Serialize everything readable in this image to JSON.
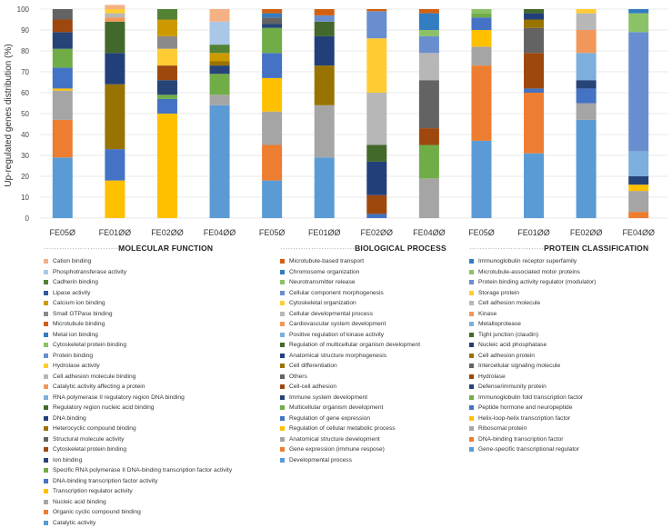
{
  "chart_data": {
    "type": "bar",
    "stacked": true,
    "ylabel": "Up-regulated genes distribution (%)",
    "ylim": [
      0,
      100
    ],
    "yticks": [
      0,
      10,
      20,
      30,
      40,
      50,
      60,
      70,
      80,
      90,
      100
    ],
    "categories": [
      "FE05Ø",
      "FE01ØØ",
      "FE02ØØ",
      "FE04ØØ",
      "FE05Ø",
      "FE01ØØ",
      "FE02ØØ",
      "FE04ØØ",
      "FE05Ø",
      "FE01ØØ",
      "FE02ØØ",
      "FE04ØØ"
    ],
    "groups": [
      {
        "title": "MOLECULAR FUNCTION",
        "categories_index": [
          0,
          1,
          2,
          3
        ],
        "series": [
          {
            "name": "Catalytic activity",
            "color": "#5b9bd5",
            "values": [
              29,
              0,
              0,
              54
            ]
          },
          {
            "name": "Organic cyclic compound binding",
            "color": "#ed7d31",
            "values": [
              18,
              0,
              0,
              0
            ]
          },
          {
            "name": "Nucleic acid binding",
            "color": "#a5a5a5",
            "values": [
              14,
              0,
              0,
              5
            ]
          },
          {
            "name": "Transcription regulator activity",
            "color": "#ffc000",
            "values": [
              1,
              18,
              50,
              0
            ]
          },
          {
            "name": "DNA-binding transcription factor activity",
            "color": "#4472c4",
            "values": [
              10,
              15,
              7,
              0
            ]
          },
          {
            "name": "Specific RNA polymerase II DNA-binding transcription factor activity",
            "color": "#70ad47",
            "values": [
              9,
              0,
              2,
              10
            ]
          },
          {
            "name": "Ion binding",
            "color": "#264478",
            "values": [
              8,
              0,
              7,
              4
            ]
          },
          {
            "name": "Cytoskeletal protein binding",
            "color": "#9e480e",
            "values": [
              6,
              0,
              7,
              0
            ]
          },
          {
            "name": "Structural molecule activity",
            "color": "#636363",
            "values": [
              5,
              0,
              0,
              0
            ]
          },
          {
            "name": "Heterocyclic compound binding",
            "color": "#997300",
            "values": [
              0,
              31,
              0,
              2
            ]
          },
          {
            "name": "DNA binding",
            "color": "#223f7a",
            "values": [
              0,
              15,
              0,
              0
            ]
          },
          {
            "name": "Regulatory region nucleic acid binding",
            "color": "#43682b",
            "values": [
              0,
              15,
              0,
              0
            ]
          },
          {
            "name": "RNA polymerase II regulatory region DNA binding",
            "color": "#7cafdd",
            "values": [
              0,
              0,
              0,
              0
            ]
          },
          {
            "name": "Catalytic activity affecting a protein",
            "color": "#f1975a",
            "values": [
              0,
              2,
              0,
              0
            ]
          },
          {
            "name": "Cell adhesion molecule binding",
            "color": "#b7b7b7",
            "values": [
              0,
              2,
              0,
              0
            ]
          },
          {
            "name": "Hydrolase activity",
            "color": "#ffcd33",
            "values": [
              0,
              2,
              8,
              0
            ]
          },
          {
            "name": "Protein binding",
            "color": "#698ed0",
            "values": [
              0,
              0,
              0,
              0
            ]
          },
          {
            "name": "Cytoskeletal protein binding",
            "color": "#8cc168",
            "values": [
              0,
              0,
              0,
              0
            ]
          },
          {
            "name": "Metal ion binding",
            "color": "#327dc2",
            "values": [
              0,
              0,
              0,
              0
            ]
          },
          {
            "name": "Microtubule binding",
            "color": "#d26012",
            "values": [
              0,
              0,
              0,
              0
            ]
          },
          {
            "name": "Small GTPase binding",
            "color": "#8a8a8a",
            "values": [
              0,
              0,
              6,
              0
            ]
          },
          {
            "name": "Calcium ion binding",
            "color": "#cc9a00",
            "values": [
              0,
              0,
              8,
              4
            ]
          },
          {
            "name": "Lipase activity",
            "color": "#335aa1",
            "values": [
              0,
              0,
              0,
              0
            ]
          },
          {
            "name": "Cadherin binding",
            "color": "#548235",
            "values": [
              0,
              0,
              5,
              4
            ]
          },
          {
            "name": "Phosphotransferase activity",
            "color": "#aac7e8",
            "values": [
              0,
              0,
              0,
              11
            ]
          },
          {
            "name": "Cation binding",
            "color": "#f4b183",
            "values": [
              0,
              2,
              0,
              6
            ]
          }
        ]
      },
      {
        "title": "BIOLOGICAL PROCESS",
        "categories_index": [
          4,
          5,
          6,
          7
        ],
        "series": [
          {
            "name": "Developmental process",
            "color": "#5b9bd5",
            "values": [
              18,
              29,
              0,
              0
            ]
          },
          {
            "name": "Gene expression (immune respose)",
            "color": "#ed7d31",
            "values": [
              17,
              0,
              0,
              0
            ]
          },
          {
            "name": "Anatomical structure development",
            "color": "#a5a5a5",
            "values": [
              16,
              25,
              0,
              19
            ]
          },
          {
            "name": "Regulation of cellular metabolic process",
            "color": "#ffc000",
            "values": [
              16,
              0,
              0,
              0
            ]
          },
          {
            "name": "Regulation of gene expression",
            "color": "#4472c4",
            "values": [
              12,
              0,
              2,
              0
            ]
          },
          {
            "name": "Multicellular organism development",
            "color": "#70ad47",
            "values": [
              12,
              0,
              0,
              16
            ]
          },
          {
            "name": "Immune system development",
            "color": "#264478",
            "values": [
              2,
              0,
              0,
              0
            ]
          },
          {
            "name": "Cell-cell adhesion",
            "color": "#9e480e",
            "values": [
              0,
              0,
              9,
              8
            ]
          },
          {
            "name": "Others",
            "color": "#636363",
            "values": [
              3,
              0,
              0,
              23
            ]
          },
          {
            "name": "Cell differentiation",
            "color": "#997300",
            "values": [
              0,
              19,
              0,
              0
            ]
          },
          {
            "name": "Anatomical structure morphogenesis",
            "color": "#223f7a",
            "values": [
              0,
              14,
              16,
              0
            ]
          },
          {
            "name": "Regulation of multicellular organism development",
            "color": "#43682b",
            "values": [
              0,
              7,
              8,
              0
            ]
          },
          {
            "name": "Positive regulation of kinase activity",
            "color": "#7cafdd",
            "values": [
              0,
              0,
              0,
              0
            ]
          },
          {
            "name": "Cardiovascular system development",
            "color": "#f1975a",
            "values": [
              0,
              0,
              0,
              0
            ]
          },
          {
            "name": "Cellular developmental process",
            "color": "#b7b7b7",
            "values": [
              0,
              0,
              25,
              13
            ]
          },
          {
            "name": "Cytoskeletal organization",
            "color": "#ffcd33",
            "values": [
              0,
              0,
              26,
              0
            ]
          },
          {
            "name": "Cellular component morphogenesis",
            "color": "#698ed0",
            "values": [
              0,
              3,
              13,
              8
            ]
          },
          {
            "name": "Neurotransmitter release",
            "color": "#8cc168",
            "values": [
              0,
              0,
              0,
              3
            ]
          },
          {
            "name": "Chromosome organization",
            "color": "#327dc2",
            "values": [
              2,
              0,
              0,
              8
            ]
          },
          {
            "name": "Microtubule-based transport",
            "color": "#d26012",
            "values": [
              2,
              3,
              1,
              2
            ]
          }
        ]
      },
      {
        "title": "PROTEIN CLASSIFICATION",
        "categories_index": [
          8,
          9,
          10,
          11
        ],
        "series": [
          {
            "name": "Gene-specific transcriptional regulator",
            "color": "#5b9bd5",
            "values": [
              37,
              31,
              47,
              0
            ]
          },
          {
            "name": "DNA-binding transcription factor",
            "color": "#ed7d31",
            "values": [
              36,
              29,
              0,
              3
            ]
          },
          {
            "name": "Ribosomal protein",
            "color": "#a5a5a5",
            "values": [
              9,
              0,
              8,
              10
            ]
          },
          {
            "name": "Helix-loop-helix transcription factor",
            "color": "#ffc000",
            "values": [
              8,
              0,
              0,
              3
            ]
          },
          {
            "name": "Peptide hormone and neuropeptide",
            "color": "#4472c4",
            "values": [
              6,
              2,
              7,
              0
            ]
          },
          {
            "name": "Immunoglobulin fold transcription factor",
            "color": "#70ad47",
            "values": [
              2,
              0,
              0,
              0
            ]
          },
          {
            "name": "Defense/immunity protein",
            "color": "#264478",
            "values": [
              0,
              0,
              4,
              4
            ]
          },
          {
            "name": "Hydrolase",
            "color": "#9e480e",
            "values": [
              0,
              17,
              0,
              0
            ]
          },
          {
            "name": "Intercellular signaling molecule",
            "color": "#636363",
            "values": [
              0,
              12,
              0,
              0
            ]
          },
          {
            "name": "Cell adhesion protein",
            "color": "#997300",
            "values": [
              0,
              4,
              0,
              0
            ]
          },
          {
            "name": "Nucleic acid phosphatase",
            "color": "#223f7a",
            "values": [
              0,
              3,
              0,
              0
            ]
          },
          {
            "name": "Tight junction (claudin)",
            "color": "#43682b",
            "values": [
              0,
              2,
              0,
              0
            ]
          },
          {
            "name": "Metalloprotease",
            "color": "#7cafdd",
            "values": [
              0,
              0,
              13,
              12
            ]
          },
          {
            "name": "Kinase",
            "color": "#f1975a",
            "values": [
              0,
              0,
              11,
              0
            ]
          },
          {
            "name": "Cell adhesion molecule",
            "color": "#b7b7b7",
            "values": [
              0,
              0,
              8,
              0
            ]
          },
          {
            "name": "Storage protein",
            "color": "#ffcd33",
            "values": [
              0,
              0,
              2,
              0
            ]
          },
          {
            "name": "Protein binding activity regulator (modulator)",
            "color": "#698ed0",
            "values": [
              0,
              0,
              0,
              57
            ]
          },
          {
            "name": "Microtubule-associated motor proteins",
            "color": "#8cc168",
            "values": [
              2,
              0,
              0,
              9
            ]
          },
          {
            "name": "Immunoglobulin receptor superfamily",
            "color": "#327dc2",
            "values": [
              0,
              0,
              0,
              2
            ]
          }
        ]
      }
    ]
  }
}
